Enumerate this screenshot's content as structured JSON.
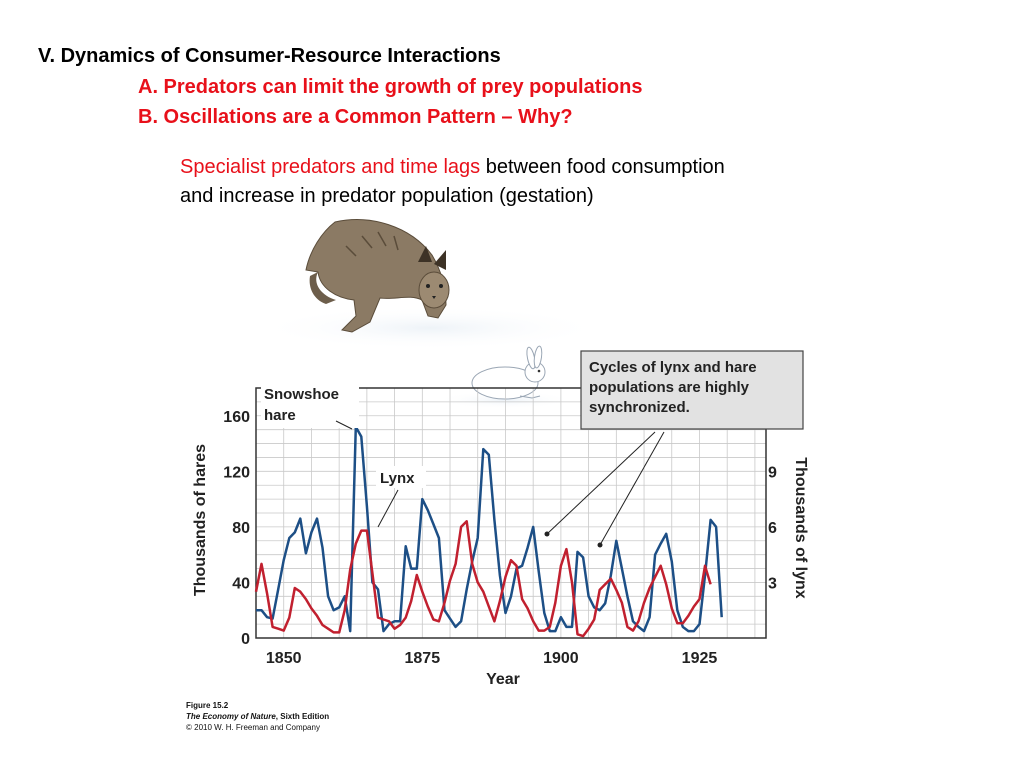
{
  "slide": {
    "heading": "V. Dynamics of Consumer-Resource Interactions",
    "point_a": "A. Predators can limit the growth of prey populations",
    "point_b": "B. Oscillations are a Common Pattern – Why?",
    "desc_red": "Specialist predators and time lags",
    "desc_rest": " between food consumption and increase in predator population (gestation)"
  },
  "callout": {
    "line1": "Cycles of lynx and hare",
    "line2": "populations are highly",
    "line3": "synchronized."
  },
  "caption": {
    "figure": "Figure 15.2",
    "book_title": "The Economy of Nature",
    "edition": ", Sixth Edition",
    "copyright": "© 2010 W. H. Freeman and Company"
  },
  "colors": {
    "hare": "#1d4f86",
    "lynx": "#c1202f",
    "accent_red": "#e8101a",
    "grid": "#c9c9c9",
    "callout_fill": "#e2e2e2"
  },
  "illustrations": [
    "lynx-illustration",
    "snowshoe-hare-illustration"
  ],
  "chart_data": {
    "type": "line",
    "title": "",
    "xlabel": "Year",
    "ylabel_left": "Thousands of hares",
    "ylabel_right": "Thousands of lynx",
    "xlim": [
      1845,
      1937
    ],
    "ylim_left": [
      0,
      180
    ],
    "ylim_right": [
      0,
      13.5
    ],
    "x_ticks": [
      1850,
      1875,
      1900,
      1925
    ],
    "y_ticks_left": [
      0,
      40,
      80,
      120,
      160
    ],
    "y_ticks_right": [
      3,
      6,
      9
    ],
    "grid": true,
    "series": [
      {
        "name": "Snowshoe hare",
        "axis": "left",
        "label_lines": [
          "Snowshoe",
          "hare"
        ],
        "points": [
          [
            1845,
            20
          ],
          [
            1846,
            20
          ],
          [
            1847,
            15
          ],
          [
            1848,
            14
          ],
          [
            1849,
            35
          ],
          [
            1850,
            56
          ],
          [
            1851,
            72
          ],
          [
            1852,
            76
          ],
          [
            1853,
            86
          ],
          [
            1854,
            61
          ],
          [
            1855,
            76
          ],
          [
            1856,
            86
          ],
          [
            1857,
            65
          ],
          [
            1858,
            30
          ],
          [
            1859,
            20
          ],
          [
            1860,
            22
          ],
          [
            1861,
            30
          ],
          [
            1862,
            5
          ],
          [
            1863,
            152
          ],
          [
            1864,
            145
          ],
          [
            1865,
            95
          ],
          [
            1866,
            40
          ],
          [
            1867,
            35
          ],
          [
            1868,
            5
          ],
          [
            1869,
            10
          ],
          [
            1870,
            12
          ],
          [
            1871,
            12
          ],
          [
            1872,
            66
          ],
          [
            1873,
            50
          ],
          [
            1874,
            50
          ],
          [
            1875,
            100
          ],
          [
            1876,
            92
          ],
          [
            1877,
            82
          ],
          [
            1878,
            72
          ],
          [
            1879,
            20
          ],
          [
            1880,
            14
          ],
          [
            1881,
            8
          ],
          [
            1882,
            12
          ],
          [
            1883,
            35
          ],
          [
            1884,
            55
          ],
          [
            1885,
            72
          ],
          [
            1886,
            136
          ],
          [
            1887,
            132
          ],
          [
            1888,
            85
          ],
          [
            1889,
            45
          ],
          [
            1890,
            18
          ],
          [
            1891,
            30
          ],
          [
            1892,
            50
          ],
          [
            1893,
            52
          ],
          [
            1894,
            65
          ],
          [
            1895,
            80
          ],
          [
            1896,
            48
          ],
          [
            1897,
            18
          ],
          [
            1898,
            5
          ],
          [
            1899,
            5
          ],
          [
            1900,
            15
          ],
          [
            1901,
            8
          ],
          [
            1902,
            8
          ],
          [
            1903,
            62
          ],
          [
            1904,
            58
          ],
          [
            1905,
            30
          ],
          [
            1906,
            22
          ],
          [
            1907,
            20
          ],
          [
            1908,
            25
          ],
          [
            1909,
            45
          ],
          [
            1910,
            70
          ],
          [
            1911,
            50
          ],
          [
            1912,
            30
          ],
          [
            1913,
            12
          ],
          [
            1914,
            8
          ],
          [
            1915,
            5
          ],
          [
            1916,
            15
          ],
          [
            1917,
            60
          ],
          [
            1918,
            68
          ],
          [
            1919,
            75
          ],
          [
            1920,
            55
          ],
          [
            1921,
            20
          ],
          [
            1922,
            8
          ],
          [
            1923,
            5
          ],
          [
            1924,
            5
          ],
          [
            1925,
            10
          ],
          [
            1926,
            45
          ],
          [
            1927,
            85
          ],
          [
            1928,
            80
          ],
          [
            1929,
            15
          ]
        ]
      },
      {
        "name": "Lynx",
        "axis": "right",
        "label_lines": [
          "Lynx"
        ],
        "points": [
          [
            1845,
            2.5
          ],
          [
            1846,
            4
          ],
          [
            1847,
            2.4
          ],
          [
            1848,
            0.6
          ],
          [
            1849,
            0.5
          ],
          [
            1850,
            0.4
          ],
          [
            1851,
            1.1
          ],
          [
            1852,
            2.7
          ],
          [
            1853,
            2.5
          ],
          [
            1854,
            2.1
          ],
          [
            1855,
            1.6
          ],
          [
            1856,
            1.2
          ],
          [
            1857,
            0.7
          ],
          [
            1858,
            0.5
          ],
          [
            1859,
            0.3
          ],
          [
            1860,
            0.3
          ],
          [
            1861,
            1.5
          ],
          [
            1862,
            3.7
          ],
          [
            1863,
            5.1
          ],
          [
            1864,
            5.8
          ],
          [
            1865,
            5.8
          ],
          [
            1866,
            3.5
          ],
          [
            1867,
            1.1
          ],
          [
            1868,
            1.0
          ],
          [
            1869,
            0.9
          ],
          [
            1870,
            0.5
          ],
          [
            1871,
            0.7
          ],
          [
            1872,
            1.1
          ],
          [
            1873,
            2.0
          ],
          [
            1874,
            3.4
          ],
          [
            1875,
            2.5
          ],
          [
            1876,
            1.7
          ],
          [
            1877,
            1.0
          ],
          [
            1878,
            0.9
          ],
          [
            1879,
            1.9
          ],
          [
            1880,
            3.1
          ],
          [
            1881,
            4.0
          ],
          [
            1882,
            6.0
          ],
          [
            1883,
            6.3
          ],
          [
            1884,
            4.0
          ],
          [
            1885,
            3.0
          ],
          [
            1886,
            2.5
          ],
          [
            1887,
            1.7
          ],
          [
            1888,
            0.9
          ],
          [
            1889,
            2.0
          ],
          [
            1890,
            3.3
          ],
          [
            1891,
            4.2
          ],
          [
            1892,
            3.9
          ],
          [
            1893,
            2.1
          ],
          [
            1894,
            1.6
          ],
          [
            1895,
            0.9
          ],
          [
            1896,
            0.4
          ],
          [
            1897,
            0.4
          ],
          [
            1898,
            0.6
          ],
          [
            1899,
            1.9
          ],
          [
            1900,
            3.9
          ],
          [
            1901,
            4.8
          ],
          [
            1902,
            3.0
          ],
          [
            1903,
            0.2
          ],
          [
            1904,
            0.1
          ],
          [
            1905,
            0.5
          ],
          [
            1906,
            1.0
          ],
          [
            1907,
            2.6
          ],
          [
            1908,
            2.9
          ],
          [
            1909,
            3.2
          ],
          [
            1910,
            2.6
          ],
          [
            1911,
            1.9
          ],
          [
            1912,
            0.6
          ],
          [
            1913,
            0.4
          ],
          [
            1914,
            0.9
          ],
          [
            1915,
            1.9
          ],
          [
            1916,
            2.7
          ],
          [
            1917,
            3.3
          ],
          [
            1918,
            3.9
          ],
          [
            1919,
            2.9
          ],
          [
            1920,
            1.6
          ],
          [
            1921,
            0.8
          ],
          [
            1922,
            0.8
          ],
          [
            1923,
            1.2
          ],
          [
            1924,
            1.7
          ],
          [
            1925,
            2.1
          ],
          [
            1926,
            3.9
          ],
          [
            1927,
            2.9
          ]
        ]
      }
    ]
  }
}
